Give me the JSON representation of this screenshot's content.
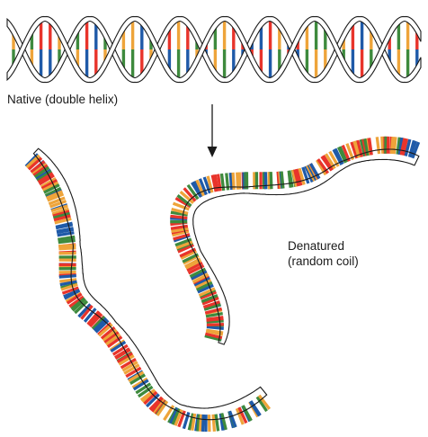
{
  "labels": {
    "native": "Native (double helix)",
    "denatured_line1": "Denatured",
    "denatured_line2": "(random coil)"
  },
  "base_colors": {
    "red": "#e8342b",
    "orange": "#eea43a",
    "green": "#3e8a3d",
    "blue": "#1f5aa8"
  },
  "strand_color": "#1a1a1a"
}
